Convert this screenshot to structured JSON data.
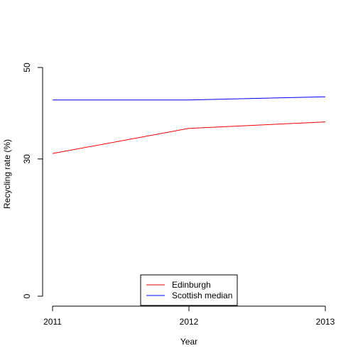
{
  "chart_data": {
    "type": "line",
    "title": "",
    "xlabel": "Year",
    "ylabel": "Recycling rate (%)",
    "x": [
      2011,
      2012,
      2013
    ],
    "x_tick_labels": [
      "2011",
      "2012",
      "2013"
    ],
    "y_ticks": [
      0,
      30,
      50
    ],
    "y_tick_labels": [
      "0",
      "30",
      "50"
    ],
    "xlim": [
      2011,
      2013
    ],
    "ylim": [
      0,
      50
    ],
    "grid": false,
    "legend_position": "bottom-center",
    "series": [
      {
        "name": "Edinburgh",
        "color": "#ff0000",
        "values": [
          31.2,
          36.7,
          38.1
        ]
      },
      {
        "name": "Scottish median",
        "color": "#0000ff",
        "values": [
          42.9,
          42.9,
          43.6
        ]
      }
    ]
  }
}
